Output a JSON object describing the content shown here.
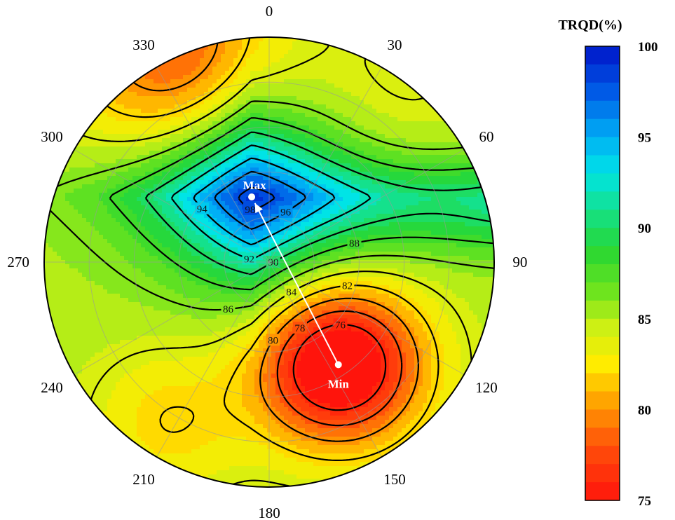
{
  "chart_data": {
    "type": "heatmap",
    "projection": "polar",
    "angle_direction": "clockwise from top",
    "angle_ticks": [
      0,
      30,
      60,
      90,
      120,
      150,
      180,
      210,
      240,
      270,
      300,
      330
    ],
    "colorbar": {
      "title": "TRQD(%)",
      "range": [
        75,
        100
      ],
      "ticks": [
        100,
        95,
        90,
        85,
        80,
        75
      ]
    },
    "contour_levels": [
      76,
      78,
      80,
      82,
      84,
      86,
      88,
      90,
      92,
      94,
      96,
      98
    ],
    "field_features": [
      {
        "type": "max",
        "label": "Max",
        "angle_deg": 345,
        "radius_frac": 0.3,
        "value": 99
      },
      {
        "type": "min",
        "label": "Min",
        "angle_deg": 146,
        "radius_frac": 0.55,
        "value": 75
      }
    ],
    "colors": {
      "min": "#ff1a10",
      "mid_low": "#ffee00",
      "mid": "#33dd33",
      "mid_high": "#00e0f0",
      "max": "#0010d0"
    }
  }
}
